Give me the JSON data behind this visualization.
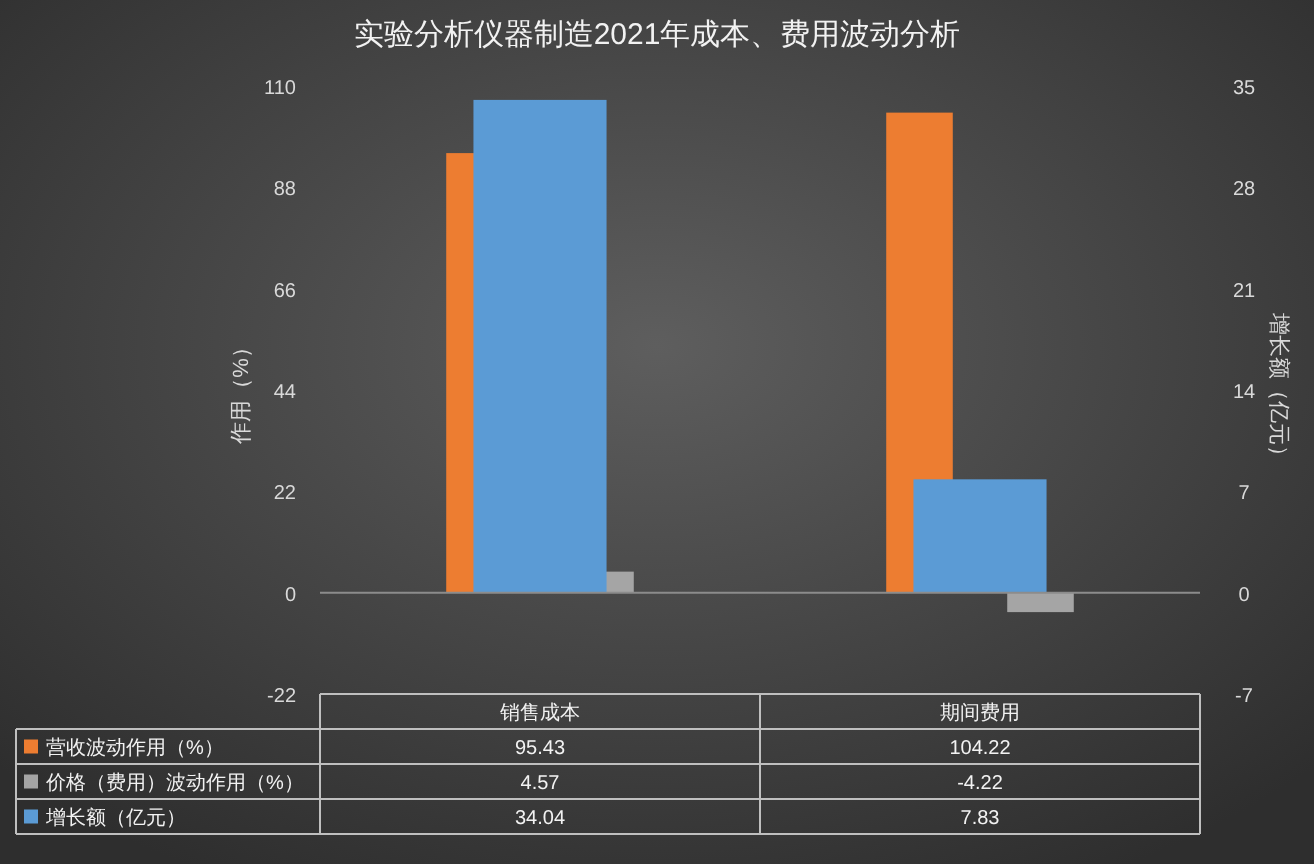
{
  "chart_data": {
    "type": "bar",
    "title": "实验分析仪器制造2021年成本、费用波动分析",
    "ylabel": "作用（%）",
    "y2label": "增长额（亿元）",
    "categories": [
      "销售成本",
      "期间费用"
    ],
    "series": [
      {
        "name": "营收波动作用（%）",
        "color": "#ed7d31",
        "values": [
          95.43,
          104.22
        ]
      },
      {
        "name": "价格（费用）波动作用（%）",
        "color": "#a5a5a5",
        "values": [
          4.57,
          -4.22
        ]
      },
      {
        "name": "增长额（亿元）",
        "color": "#5b9bd5",
        "values": [
          34.04,
          7.83
        ],
        "axis": "y2"
      }
    ],
    "ylim": [
      -22,
      110
    ],
    "yticks": [
      -22,
      0,
      22,
      44,
      66,
      88,
      110
    ],
    "y2lim": [
      -7,
      35
    ],
    "y2ticks": [
      -7,
      0,
      7,
      14,
      21,
      28,
      35
    ],
    "data_labels": true,
    "legend": "bottom left"
  }
}
